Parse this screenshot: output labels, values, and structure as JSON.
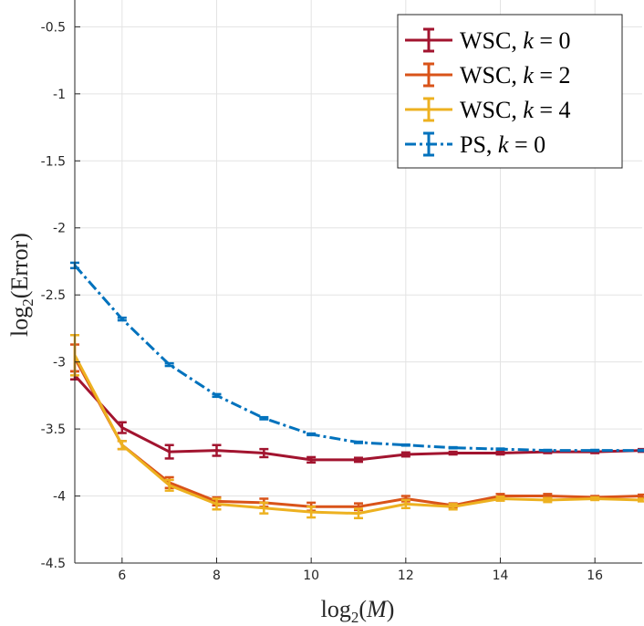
{
  "chart_data": {
    "type": "line",
    "xlabel": {
      "pre": "log",
      "sub": "2",
      "post": "(",
      "var": "M",
      "end": ")"
    },
    "ylabel": {
      "pre": "log",
      "sub": "2",
      "post": "(Error)"
    },
    "xlim": [
      5,
      17
    ],
    "ylim": [
      -4.5,
      -0.3
    ],
    "x_ticks": [
      6,
      8,
      10,
      12,
      14,
      16
    ],
    "y_ticks": [
      -4.5,
      -4,
      -3.5,
      -3,
      -2.5,
      -2,
      -1.5,
      -1,
      -0.5
    ],
    "grid": true,
    "legend_placement": "top-right",
    "series": [
      {
        "name": {
          "pre": "WSC, ",
          "var": "k",
          "post": " = 0"
        },
        "color": "#A2142F",
        "style": "solid",
        "x": [
          5,
          6,
          7,
          8,
          9,
          10,
          11,
          12,
          13,
          14,
          15,
          16,
          17
        ],
        "y": [
          -3.1,
          -3.49,
          -3.67,
          -3.66,
          -3.68,
          -3.73,
          -3.73,
          -3.69,
          -3.68,
          -3.68,
          -3.67,
          -3.67,
          -3.66
        ],
        "err": [
          0.03,
          0.04,
          0.05,
          0.04,
          0.03,
          0.02,
          0.015,
          0.015,
          0.01,
          0.01,
          0.01,
          0.01,
          0.01
        ]
      },
      {
        "name": {
          "pre": "WSC, ",
          "var": "k",
          "post": " = 2"
        },
        "color": "#D95319",
        "style": "solid",
        "x": [
          5,
          6,
          7,
          8,
          9,
          10,
          11,
          12,
          13,
          14,
          15,
          16,
          17
        ],
        "y": [
          -2.97,
          -3.62,
          -3.9,
          -4.04,
          -4.05,
          -4.08,
          -4.08,
          -4.02,
          -4.07,
          -4.0,
          -4.0,
          -4.01,
          -4.0
        ],
        "err": [
          0.1,
          0.03,
          0.04,
          0.03,
          0.03,
          0.03,
          0.025,
          0.02,
          0.015,
          0.015,
          0.015,
          0.01,
          0.01
        ]
      },
      {
        "name": {
          "pre": "WSC, ",
          "var": "k",
          "post": " = 4"
        },
        "color": "#EDB120",
        "style": "solid",
        "x": [
          5,
          6,
          7,
          8,
          9,
          10,
          11,
          12,
          13,
          14,
          15,
          16,
          17
        ],
        "y": [
          -2.95,
          -3.62,
          -3.92,
          -4.06,
          -4.09,
          -4.12,
          -4.13,
          -4.06,
          -4.08,
          -4.02,
          -4.03,
          -4.02,
          -4.03
        ],
        "err": [
          0.15,
          0.03,
          0.04,
          0.04,
          0.04,
          0.04,
          0.035,
          0.03,
          0.02,
          0.015,
          0.015,
          0.01,
          0.01
        ]
      },
      {
        "name": {
          "pre": "PS, ",
          "var": "k",
          "post": " = 0"
        },
        "color": "#0072BD",
        "style": "dashdot",
        "x": [
          5,
          6,
          7,
          8,
          9,
          10,
          11,
          12,
          13,
          14,
          15,
          16,
          17
        ],
        "y": [
          -2.28,
          -2.68,
          -3.02,
          -3.25,
          -3.42,
          -3.54,
          -3.6,
          -3.62,
          -3.64,
          -3.65,
          -3.66,
          -3.66,
          -3.66
        ],
        "err": [
          0.02,
          0.01,
          0.01,
          0.01,
          0.008,
          0.006,
          0.005,
          0.004,
          0.004,
          0.004,
          0.004,
          0.004,
          0.004
        ]
      }
    ]
  }
}
